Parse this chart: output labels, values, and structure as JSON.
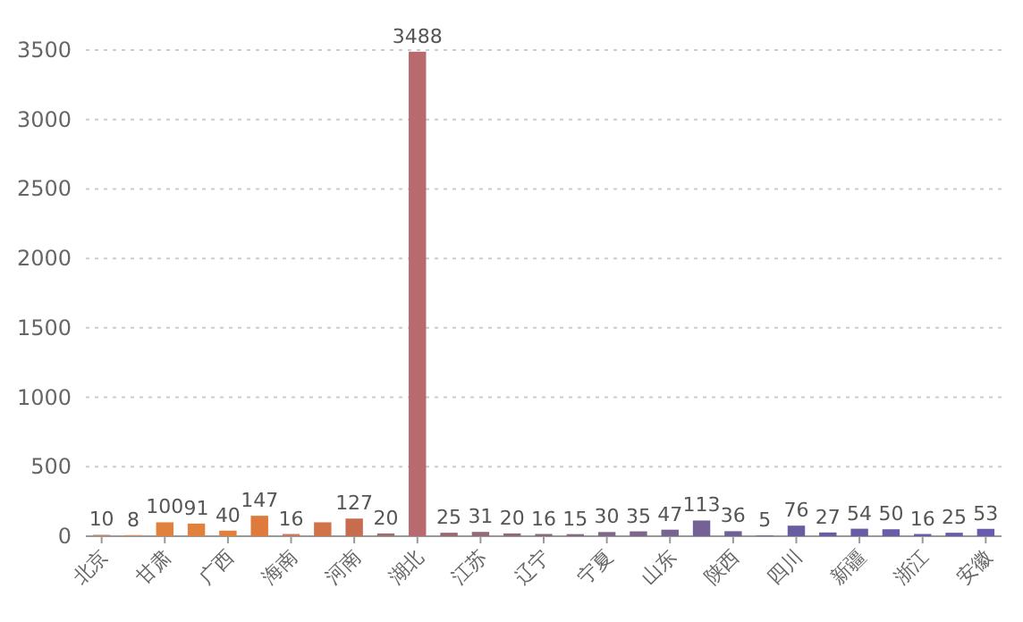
{
  "chart_data": {
    "type": "bar",
    "categories": [
      "北京",
      null,
      "甘肃",
      null,
      "广西",
      null,
      "海南",
      null,
      "河南",
      null,
      "湖北",
      null,
      "江苏",
      null,
      "辽宁",
      null,
      "宁夏",
      null,
      "山东",
      null,
      "陕西",
      null,
      "四川",
      null,
      "新疆",
      null,
      "浙江",
      null,
      "安徽"
    ],
    "values": [
      10,
      8,
      100,
      91,
      40,
      147,
      16,
      100,
      127,
      20,
      3488,
      25,
      31,
      20,
      16,
      15,
      30,
      35,
      47,
      113,
      36,
      5,
      76,
      27,
      54,
      50,
      16,
      25,
      53
    ],
    "value_labels": [
      "10",
      "8",
      "100",
      "91",
      "40",
      "147",
      "16",
      null,
      "127",
      "20",
      "3488",
      "25",
      "31",
      "20",
      "16",
      "15",
      "30",
      "35",
      "47",
      "113",
      "36",
      "5",
      "76",
      "27",
      "54",
      "50",
      "16",
      "25",
      "53"
    ],
    "colors": [
      "#b88870",
      "#d08a60",
      "#e0823e",
      "#e0823e",
      "#e0823e",
      "#dd7a3c",
      "#c97a5a",
      "#d07448",
      "#c86c50",
      "#9c7070",
      "#b86a6e",
      "#9a6a72",
      "#946a78",
      "#8e6a7c",
      "#886a80",
      "#846a84",
      "#806888",
      "#7c668c",
      "#786490",
      "#746296",
      "#706098",
      "#6c5e9c",
      "#6a5ca0",
      "#6a5ca2",
      "#6a5ca4",
      "#6a5ca6",
      "#6a5ca8",
      "#6a5caa",
      "#6a5cac"
    ],
    "ylim": [
      0,
      3500
    ],
    "yticks": [
      0,
      500,
      1000,
      1500,
      2000,
      2500,
      3000,
      3500
    ],
    "grid": "y"
  }
}
